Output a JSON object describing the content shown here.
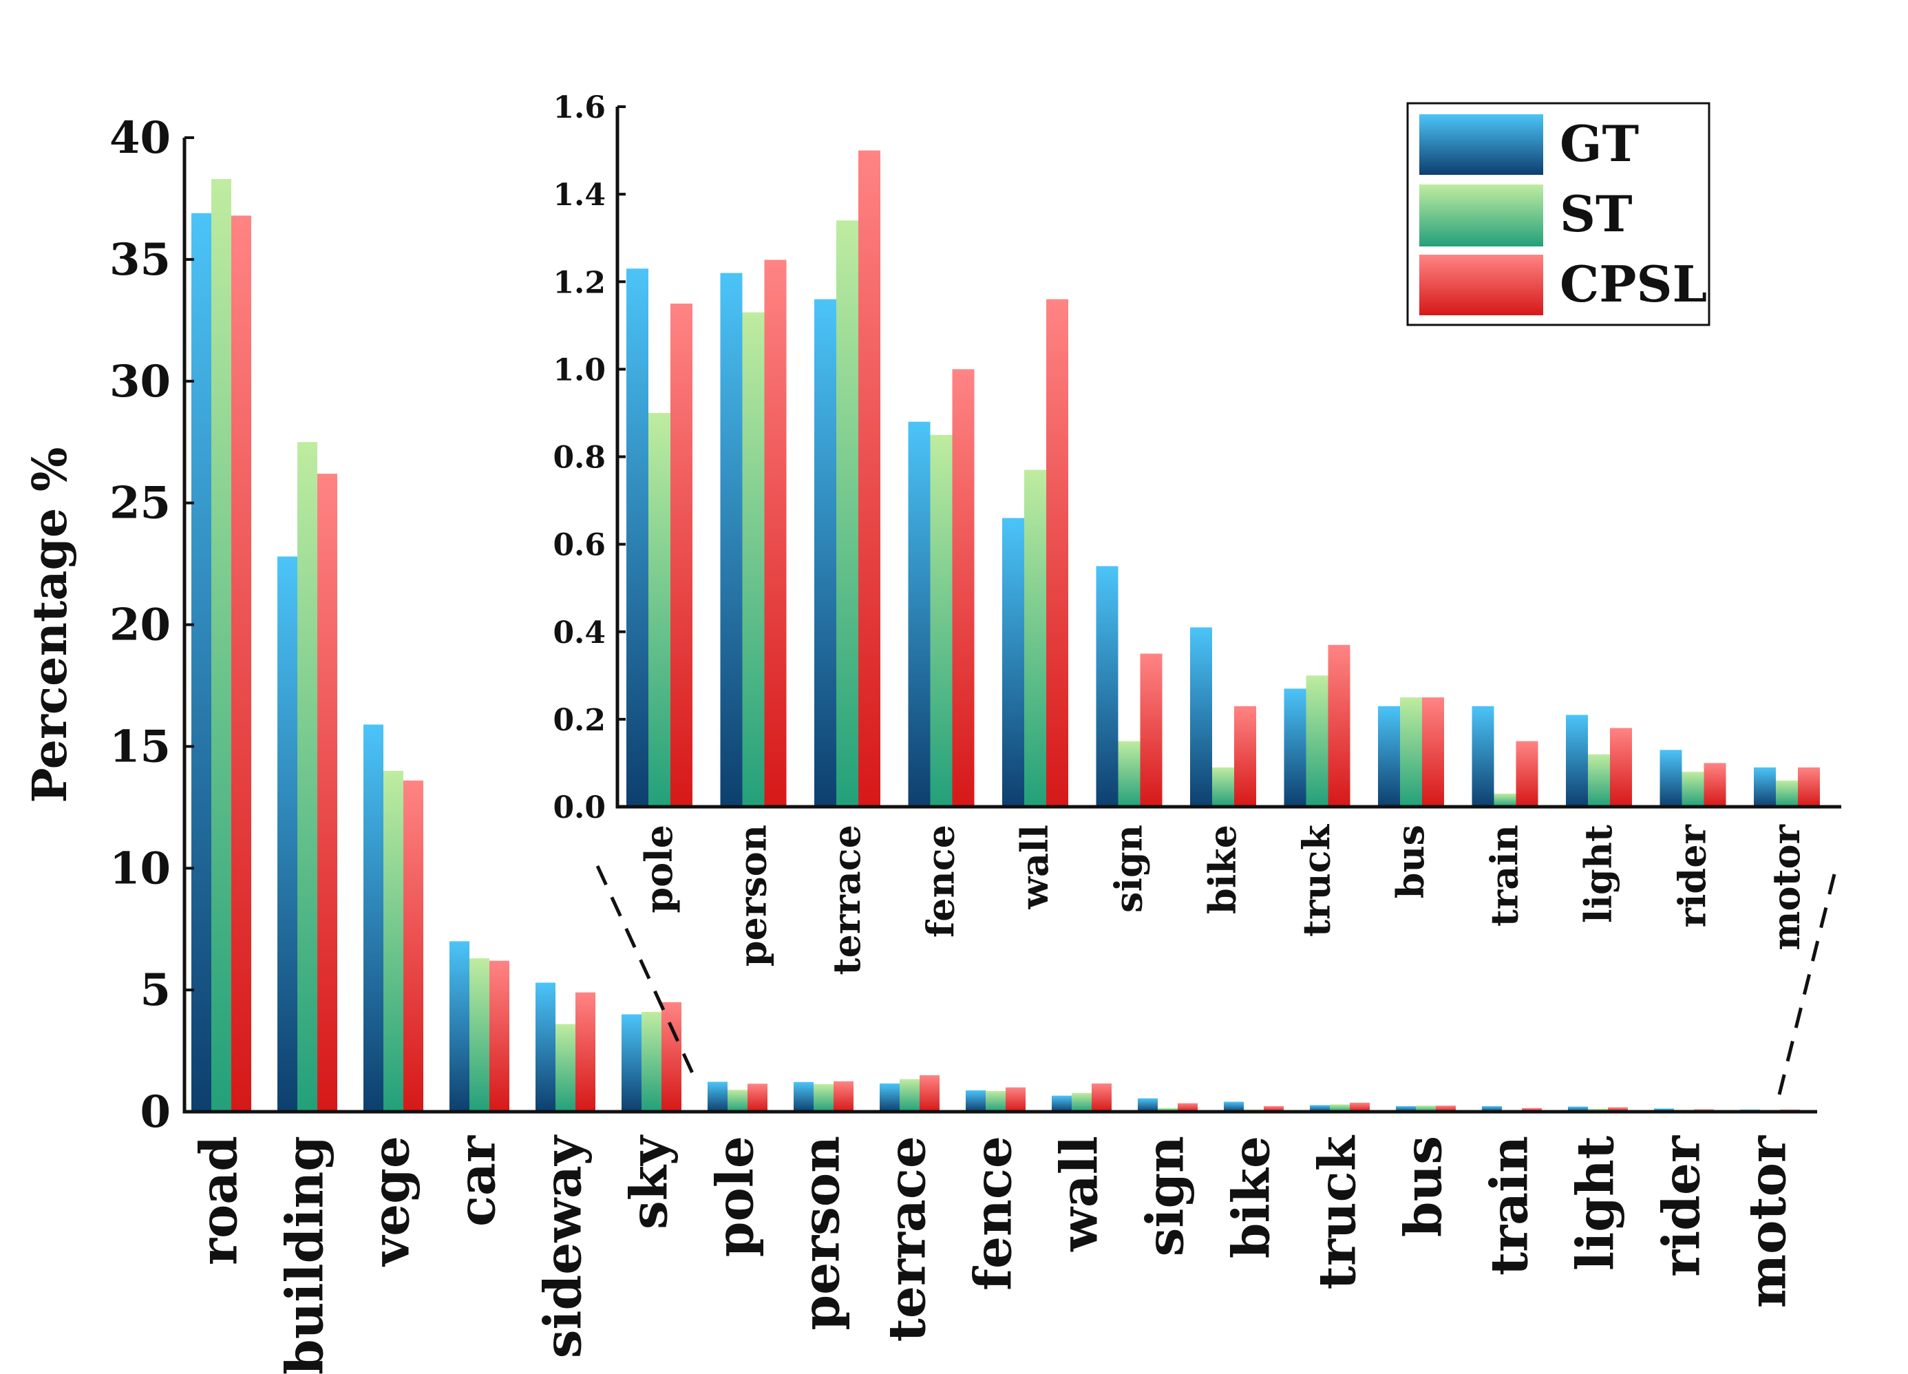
{
  "chart_data": [
    {
      "type": "bar",
      "ylabel": "Percentage %",
      "ylim": [
        0,
        40
      ],
      "yticks": [
        "0",
        "5",
        "10",
        "15",
        "20",
        "25",
        "30",
        "35",
        "40"
      ],
      "categories": [
        "road",
        "building",
        "vege",
        "car",
        "sideway",
        "sky",
        "pole",
        "person",
        "terrace",
        "fence",
        "wall",
        "sign",
        "bike",
        "truck",
        "bus",
        "train",
        "light",
        "rider",
        "motor"
      ],
      "series": [
        {
          "name": "GT",
          "values": [
            36.9,
            22.8,
            15.9,
            7.0,
            5.3,
            4.0,
            1.23,
            1.22,
            1.16,
            0.88,
            0.66,
            0.55,
            0.41,
            0.27,
            0.23,
            0.23,
            0.21,
            0.13,
            0.09
          ]
        },
        {
          "name": "ST",
          "values": [
            38.3,
            27.5,
            14.0,
            6.3,
            3.6,
            4.1,
            0.9,
            1.13,
            1.34,
            0.85,
            0.77,
            0.15,
            0.09,
            0.3,
            0.25,
            0.03,
            0.12,
            0.08,
            0.06
          ]
        },
        {
          "name": "CPSL",
          "values": [
            36.8,
            26.2,
            13.6,
            6.2,
            4.9,
            4.5,
            1.15,
            1.25,
            1.5,
            1.0,
            1.16,
            0.35,
            0.23,
            0.37,
            0.25,
            0.15,
            0.18,
            0.1,
            0.09
          ]
        }
      ]
    },
    {
      "type": "bar",
      "ylim": [
        0,
        1.6
      ],
      "yticks": [
        "0.0",
        "0.2",
        "0.4",
        "0.6",
        "0.8",
        "1.0",
        "1.2",
        "1.4",
        "1.6"
      ],
      "categories": [
        "pole",
        "person",
        "terrace",
        "fence",
        "wall",
        "sign",
        "bike",
        "truck",
        "bus",
        "train",
        "light",
        "rider",
        "motor"
      ],
      "series": [
        {
          "name": "GT",
          "values": [
            1.23,
            1.22,
            1.16,
            0.88,
            0.66,
            0.55,
            0.41,
            0.27,
            0.23,
            0.23,
            0.21,
            0.13,
            0.09
          ]
        },
        {
          "name": "ST",
          "values": [
            0.9,
            1.13,
            1.34,
            0.85,
            0.77,
            0.15,
            0.09,
            0.3,
            0.25,
            0.03,
            0.12,
            0.08,
            0.06
          ]
        },
        {
          "name": "CPSL",
          "values": [
            1.15,
            1.25,
            1.5,
            1.0,
            1.16,
            0.35,
            0.23,
            0.37,
            0.25,
            0.15,
            0.18,
            0.1,
            0.09
          ]
        }
      ],
      "legend": {
        "position": "top-right",
        "entries": [
          "GT",
          "ST",
          "CPSL"
        ]
      }
    }
  ],
  "colors": {
    "GT": [
      "#4cc4f8",
      "#0d3f6e"
    ],
    "ST": [
      "#bfeca0",
      "#23a07a"
    ],
    "CPSL": [
      "#ff8484",
      "#d61818"
    ]
  }
}
